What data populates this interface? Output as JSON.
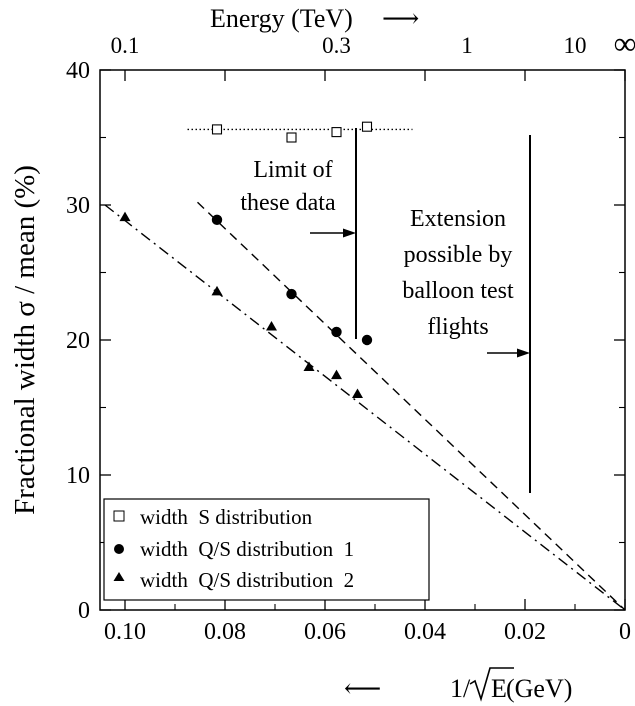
{
  "chart_data": {
    "type": "scatter",
    "top_axis": {
      "label": "Energy (TeV)",
      "arrow": "⟶",
      "ticks": [
        {
          "label": "0.1",
          "inv_sqrt_gev": 0.1
        },
        {
          "label": "0.3",
          "inv_sqrt_gev": 0.0577
        },
        {
          "label": "1",
          "inv_sqrt_gev": 0.0316
        },
        {
          "label": "10",
          "inv_sqrt_gev": 0.01
        },
        {
          "label": "∞",
          "inv_sqrt_gev": 0
        }
      ]
    },
    "x": {
      "label_prefix": "1/",
      "label_root": "E",
      "label_unit": " (GeV)",
      "arrow": "⟵",
      "min": 0.105,
      "max": 0,
      "ticks": [
        0.1,
        0.08,
        0.06,
        0.04,
        0.02,
        0
      ],
      "tick_labels": [
        "0.10",
        "0.08",
        "0.06",
        "0.04",
        "0.02",
        "0"
      ]
    },
    "y": {
      "label": "Fractional width  σ / mean   (%)",
      "min": 0,
      "max": 40,
      "ticks": [
        0,
        10,
        20,
        30,
        40
      ],
      "tick_labels": [
        "0",
        "10",
        "20",
        "30",
        "40"
      ]
    },
    "series": [
      {
        "name": "width  S distribution",
        "marker": "open-square",
        "points": [
          [
            0.0816,
            35.6
          ],
          [
            0.0667,
            35.0
          ],
          [
            0.0577,
            35.4
          ],
          [
            0.0516,
            35.8
          ]
        ]
      },
      {
        "name": "width  Q/S distribution  1",
        "marker": "filled-circle",
        "points": [
          [
            0.0816,
            28.9
          ],
          [
            0.0667,
            23.4
          ],
          [
            0.0577,
            20.6
          ],
          [
            0.0516,
            20.0
          ]
        ]
      },
      {
        "name": "width  Q/S distribution  2",
        "marker": "filled-triangle",
        "points": [
          [
            0.1,
            29.1
          ],
          [
            0.0816,
            23.6
          ],
          [
            0.0707,
            21.0
          ],
          [
            0.0632,
            18.0
          ],
          [
            0.0577,
            17.4
          ],
          [
            0.0535,
            16.0
          ]
        ]
      }
    ],
    "fit_lines": [
      {
        "series": "width  Q/S distribution  1",
        "style": "dashed",
        "from": [
          0.0855,
          30.2
        ],
        "to": [
          0,
          0
        ]
      },
      {
        "series": "width  Q/S distribution  2",
        "style": "dash-dot",
        "from": [
          0.104,
          30.0
        ],
        "to": [
          0,
          0
        ]
      },
      {
        "series": "width  S distribution",
        "style": "dotted",
        "from": [
          0.0875,
          35.6
        ],
        "to": [
          0.0425,
          35.6
        ]
      }
    ],
    "annotations": [
      {
        "lines": [
          "Limit of",
          "these data"
        ]
      },
      {
        "lines": [
          "Extension",
          "possible by",
          "balloon test",
          "flights"
        ]
      }
    ],
    "legend_position": "bottom-left",
    "grid": false
  }
}
